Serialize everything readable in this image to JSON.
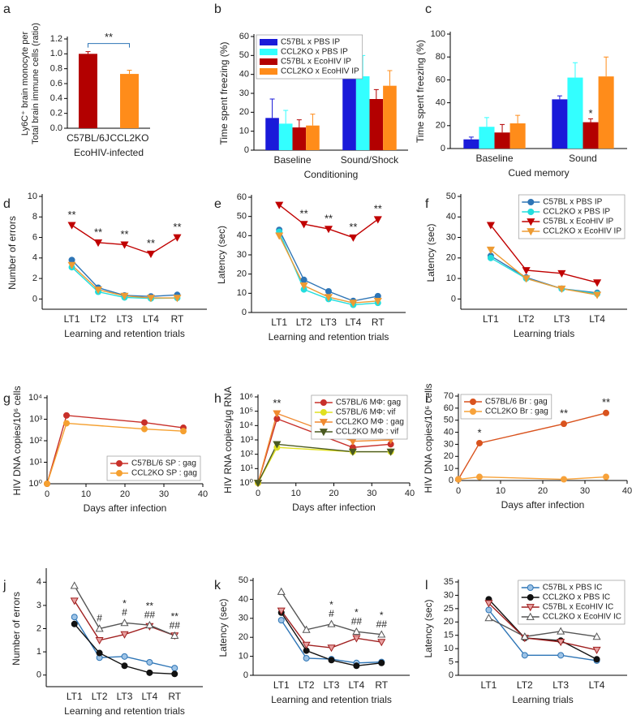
{
  "chart_data": [
    {
      "type": "bar",
      "label": "a",
      "categories": [
        "C57BL/6J",
        "CCL2KO"
      ],
      "values": [
        1.0,
        0.73
      ],
      "errors": [
        0.03,
        0.05
      ],
      "colors": [
        "#b30000",
        "#ff8c1a"
      ],
      "ylim": [
        0,
        1.2
      ],
      "yticks": [
        {
          "value": 0,
          "label": "0.0"
        },
        {
          "value": 0.2,
          "label": "0.2"
        },
        {
          "value": 0.4,
          "label": "0.4"
        },
        {
          "value": 0.6,
          "label": "0.6"
        },
        {
          "value": 0.8,
          "label": "0.8"
        },
        {
          "value": 1.0,
          "label": "1.0"
        },
        {
          "value": 1.2,
          "label": "1.2"
        }
      ],
      "ylabel": [
        "Ly6C⁺ brain monocyte per",
        "Total brain immune cells (ratio)"
      ],
      "xlabel": "EcoHIV-infected",
      "annotation": "**"
    },
    {
      "type": "bar",
      "label": "b",
      "categories": [
        "Baseline",
        "Sound/Shock"
      ],
      "legend": "upper left",
      "series": [
        {
          "name": "C57BL x PBS IP",
          "color": "#1a1ad9",
          "values": [
            17,
            43
          ],
          "errors": [
            10,
            10
          ]
        },
        {
          "name": "CCL2KO x PBS IP",
          "color": "#33ffff",
          "values": [
            14,
            39
          ],
          "errors": [
            7,
            11
          ]
        },
        {
          "name": "C57BL x EcoHIV IP",
          "color": "#b30000",
          "values": [
            12,
            27
          ],
          "errors": [
            4,
            5
          ]
        },
        {
          "name": "CCL2KO x EcoHIV IP",
          "color": "#ff8c1a",
          "values": [
            13,
            34
          ],
          "errors": [
            6,
            8
          ]
        }
      ],
      "ylim": [
        0,
        60
      ],
      "yticks": [
        0,
        10,
        20,
        30,
        40,
        50,
        60
      ],
      "ylabel": "Time spent freezing (%)",
      "xlabel": "Conditioning"
    },
    {
      "type": "bar",
      "label": "c",
      "categories": [
        "Baseline",
        "Sound"
      ],
      "series": [
        {
          "color": "#1a1ad9",
          "values": [
            8,
            43
          ],
          "errors": [
            2,
            3
          ]
        },
        {
          "color": "#33ffff",
          "values": [
            19,
            62
          ],
          "errors": [
            8,
            13
          ]
        },
        {
          "color": "#b30000",
          "values": [
            14,
            23
          ],
          "errors": [
            7,
            3
          ],
          "annotations": [
            null,
            "*"
          ]
        },
        {
          "color": "#ff8c1a",
          "values": [
            22,
            63
          ],
          "errors": [
            7,
            17
          ]
        }
      ],
      "ylim": [
        0,
        100
      ],
      "yticks": [
        0,
        20,
        40,
        60,
        80,
        100
      ],
      "ylabel": "Time spent freezing (%)",
      "xlabel": "Cued memory"
    },
    {
      "type": "line",
      "label": "d",
      "categories": [
        "LT1",
        "LT2",
        "LT3",
        "LT4",
        "RT"
      ],
      "series": [
        {
          "color": "#2e75b6",
          "marker": "circle",
          "values": [
            3.8,
            1.1,
            0.35,
            0.25,
            0.4
          ]
        },
        {
          "color": "#22dddd",
          "marker": "circle",
          "values": [
            3.1,
            0.7,
            0.15,
            0.05,
            0.1
          ]
        },
        {
          "color": "#c00000",
          "marker": "tri-down",
          "values": [
            7.2,
            5.5,
            5.3,
            4.4,
            6.0
          ],
          "annotations": [
            "**",
            "**",
            "**",
            "**",
            "**"
          ]
        },
        {
          "color": "#ed9b33",
          "marker": "tri-down",
          "values": [
            3.3,
            0.9,
            0.3,
            0.1,
            0.1
          ]
        }
      ],
      "ylim": [
        -1,
        10
      ],
      "yticks": [
        0,
        2,
        4,
        6,
        8,
        10
      ],
      "ylabel": "Number of errors",
      "xlabel": "Learning and retention trials"
    },
    {
      "type": "line",
      "label": "e",
      "categories": [
        "LT1",
        "LT2",
        "LT3",
        "LT4",
        "RT"
      ],
      "series": [
        {
          "color": "#2e75b6",
          "marker": "circle",
          "values": [
            43,
            17,
            11,
            6,
            8.5
          ]
        },
        {
          "color": "#22dddd",
          "marker": "circle",
          "values": [
            42,
            12,
            7,
            4,
            5
          ]
        },
        {
          "color": "#c00000",
          "marker": "tri-down",
          "values": [
            56,
            46,
            43.5,
            39,
            48.5
          ],
          "annotations": [
            null,
            "**",
            "**",
            "**",
            "**"
          ]
        },
        {
          "color": "#ed9b33",
          "marker": "tri-down",
          "values": [
            40,
            14,
            8,
            5,
            6
          ]
        }
      ],
      "ylim": [
        0,
        60
      ],
      "yticks": [
        0,
        10,
        20,
        30,
        40,
        50,
        60
      ],
      "ylabel": "Latency (sec)",
      "xlabel": "Learning and retention trials"
    },
    {
      "type": "line",
      "label": "f",
      "categories": [
        "LT1",
        "LT2",
        "LT3",
        "LT4"
      ],
      "legend": "upper right",
      "series": [
        {
          "name": "C57BL x PBS IP",
          "color": "#2e75b6",
          "marker": "circle",
          "values": [
            21,
            10.5,
            5,
            3
          ]
        },
        {
          "name": "CCL2KO x PBS IP",
          "color": "#22dddd",
          "marker": "circle",
          "values": [
            20,
            10,
            5,
            2.5
          ]
        },
        {
          "name": "C57BL x EcoHIV IP",
          "color": "#c00000",
          "marker": "tri-down",
          "values": [
            36,
            14,
            12.5,
            8
          ]
        },
        {
          "name": "CCL2KO x EcoHIV IP",
          "color": "#ed9b33",
          "marker": "tri-down",
          "values": [
            24,
            10,
            5,
            2
          ]
        }
      ],
      "ylim": [
        -5,
        50
      ],
      "yticks": [
        0,
        10,
        20,
        30,
        40,
        50
      ],
      "ylabel": "Latency (sec)",
      "xlabel": "Learning trials"
    },
    {
      "type": "line",
      "label": "g",
      "x": [
        0,
        5,
        25,
        35
      ],
      "log_y": true,
      "legend": "lower right",
      "series": [
        {
          "name": "C57BL/6 SP : gag",
          "color": "#c8302a",
          "marker": "circle",
          "values": [
            1,
            1500,
            700,
            400
          ]
        },
        {
          "name": "CCL2KO SP : gag",
          "color": "#f5a030",
          "marker": "circle",
          "values": [
            1,
            650,
            350,
            280
          ]
        }
      ],
      "xlim": [
        0,
        40
      ],
      "xticks": [
        0,
        10,
        20,
        30,
        40
      ],
      "ylim": [
        1,
        10000
      ],
      "yticks": [
        {
          "value": 1,
          "label": "10⁰"
        },
        {
          "value": 10,
          "label": "10¹"
        },
        {
          "value": 100,
          "label": "10²"
        },
        {
          "value": 1000,
          "label": "10³"
        },
        {
          "value": 10000,
          "label": "10⁴"
        }
      ],
      "ylabel": "HIV DNA copies/10⁶ cells",
      "xlabel": "Days after infection"
    },
    {
      "type": "line",
      "label": "h",
      "x": [
        0,
        5,
        25,
        35
      ],
      "log_y": true,
      "legend": "upper right",
      "series": [
        {
          "name": "C57BL/6 MΦ: gag",
          "color": "#c8302a",
          "marker": "circle",
          "values": [
            1,
            30000,
            300,
            500
          ]
        },
        {
          "name": "C57BL/6 MΦ: vif",
          "color": "#e0e020",
          "marker": "circle",
          "values": [
            1,
            300,
            150,
            150
          ]
        },
        {
          "name": "CCL2KO MΦ : gag",
          "color": "#f08a30",
          "marker": "tri-down",
          "values": [
            1,
            70000,
            800,
            1000
          ],
          "annotations": [
            null,
            "**",
            null,
            null
          ]
        },
        {
          "name": "CCL2KO MΦ : vif",
          "color": "#4a5a20",
          "marker": "tri-down",
          "values": [
            1,
            500,
            150,
            150
          ]
        }
      ],
      "xlim": [
        0,
        40
      ],
      "xticks": [
        0,
        10,
        20,
        30,
        40
      ],
      "ylim": [
        1,
        1000000
      ],
      "yticks": [
        {
          "value": 1,
          "label": "10⁰"
        },
        {
          "value": 10,
          "label": "10¹"
        },
        {
          "value": 100,
          "label": "10²"
        },
        {
          "value": 1000,
          "label": "10³"
        },
        {
          "value": 10000,
          "label": "10⁴"
        },
        {
          "value": 100000,
          "label": "10⁵"
        },
        {
          "value": 1000000,
          "label": "10⁶"
        }
      ],
      "ylabel": "HIV RNA copies/μg RNA",
      "xlabel": "Days after infection"
    },
    {
      "type": "line",
      "label": "i",
      "x": [
        0,
        5,
        25,
        35
      ],
      "legend": "upper left",
      "series": [
        {
          "name": "C57BL/6 Br : gag",
          "color": "#d9531e",
          "marker": "circle",
          "values": [
            1,
            31,
            47,
            56
          ],
          "annotations": [
            null,
            "*",
            "**",
            "**"
          ]
        },
        {
          "name": "CCL2KO Br : gag",
          "color": "#f7a23a",
          "marker": "circle",
          "values": [
            1,
            3,
            1,
            3
          ]
        }
      ],
      "xlim": [
        0,
        40
      ],
      "xticks": [
        0,
        10,
        20,
        30,
        40
      ],
      "ylim": [
        0,
        70
      ],
      "yticks": [
        0,
        10,
        20,
        30,
        40,
        50,
        60,
        70
      ],
      "ylabel": "HIV DNA copies/10⁶ cells",
      "xlabel": "Days after infection"
    },
    {
      "type": "line",
      "label": "j",
      "categories": [
        "LT1",
        "LT2",
        "LT3",
        "LT4",
        "RT"
      ],
      "series": [
        {
          "color": "#2e75b6",
          "fill": "#9dc3e6",
          "marker": "circle",
          "values": [
            2.5,
            0.75,
            0.8,
            0.55,
            0.3
          ]
        },
        {
          "color": "#111111",
          "fill": "#111111",
          "marker": "circle",
          "values": [
            2.2,
            0.95,
            0.4,
            0.1,
            0.05
          ]
        },
        {
          "color": "#a02020",
          "fill": "#e8a0a0",
          "marker": "tri-down",
          "values": [
            3.2,
            1.5,
            1.75,
            2.1,
            1.7
          ]
        },
        {
          "color": "#555555",
          "fill": "#ffffff",
          "marker": "tri-up",
          "values": [
            3.85,
            2.0,
            2.25,
            2.15,
            1.7
          ],
          "annotations": [
            null,
            [
              "#"
            ],
            [
              "#",
              "*"
            ],
            [
              "##",
              "**"
            ],
            [
              "##",
              "**"
            ]
          ]
        }
      ],
      "ylim": [
        -0.5,
        4.5
      ],
      "yticks": [
        0,
        1,
        2,
        3,
        4
      ],
      "ylabel": "Number of errors",
      "xlabel": "Learning and retention trials"
    },
    {
      "type": "line",
      "label": "k",
      "categories": [
        "LT1",
        "LT2",
        "LT3",
        "LT4",
        "RT"
      ],
      "series": [
        {
          "color": "#2e75b6",
          "fill": "#9dc3e6",
          "marker": "circle",
          "values": [
            29,
            9,
            8.5,
            6.5,
            7
          ]
        },
        {
          "color": "#111111",
          "fill": "#111111",
          "marker": "circle",
          "values": [
            33,
            13,
            8,
            5,
            6.5
          ]
        },
        {
          "color": "#a02020",
          "fill": "#e8a0a0",
          "marker": "tri-down",
          "values": [
            34,
            16,
            14.5,
            19.5,
            17.5
          ]
        },
        {
          "color": "#555555",
          "fill": "#ffffff",
          "marker": "tri-up",
          "values": [
            44,
            24,
            27,
            23,
            21.5
          ],
          "annotations": [
            null,
            null,
            [
              "#",
              "*"
            ],
            [
              "##",
              "*"
            ],
            [
              "##",
              "*"
            ]
          ]
        }
      ],
      "ylim": [
        0,
        50
      ],
      "yticks": [
        0,
        10,
        20,
        30,
        40,
        50
      ],
      "ylabel": "Latency (sec)",
      "xlabel": "Learning and retention trials"
    },
    {
      "type": "line",
      "label": "l",
      "categories": [
        "LT1",
        "LT2",
        "LT3",
        "LT4"
      ],
      "legend": "upper right",
      "series": [
        {
          "name": "C57BL x PBS IC",
          "color": "#2e75b6",
          "fill": "#9dc3e6",
          "marker": "circle",
          "values": [
            24.5,
            7.5,
            7.5,
            5.5
          ]
        },
        {
          "name": "CCL2KO x PBS IC",
          "color": "#111111",
          "fill": "#111111",
          "marker": "circle",
          "values": [
            28.5,
            14,
            13,
            6
          ]
        },
        {
          "name": "C57BL x EcoHIV IC",
          "color": "#a02020",
          "fill": "#e8a0a0",
          "marker": "tri-down",
          "values": [
            27,
            14,
            12.5,
            9.5
          ]
        },
        {
          "name": "CCL2KO x EcoHIV IC",
          "color": "#555555",
          "fill": "#ffffff",
          "marker": "tri-up",
          "values": [
            21.5,
            14.5,
            16.5,
            14.5
          ]
        }
      ],
      "ylim": [
        0,
        35
      ],
      "yticks": [
        0,
        5,
        10,
        15,
        20,
        25,
        30,
        35
      ],
      "ylabel": "Latency (sec)",
      "xlabel": "Learning trials"
    }
  ]
}
